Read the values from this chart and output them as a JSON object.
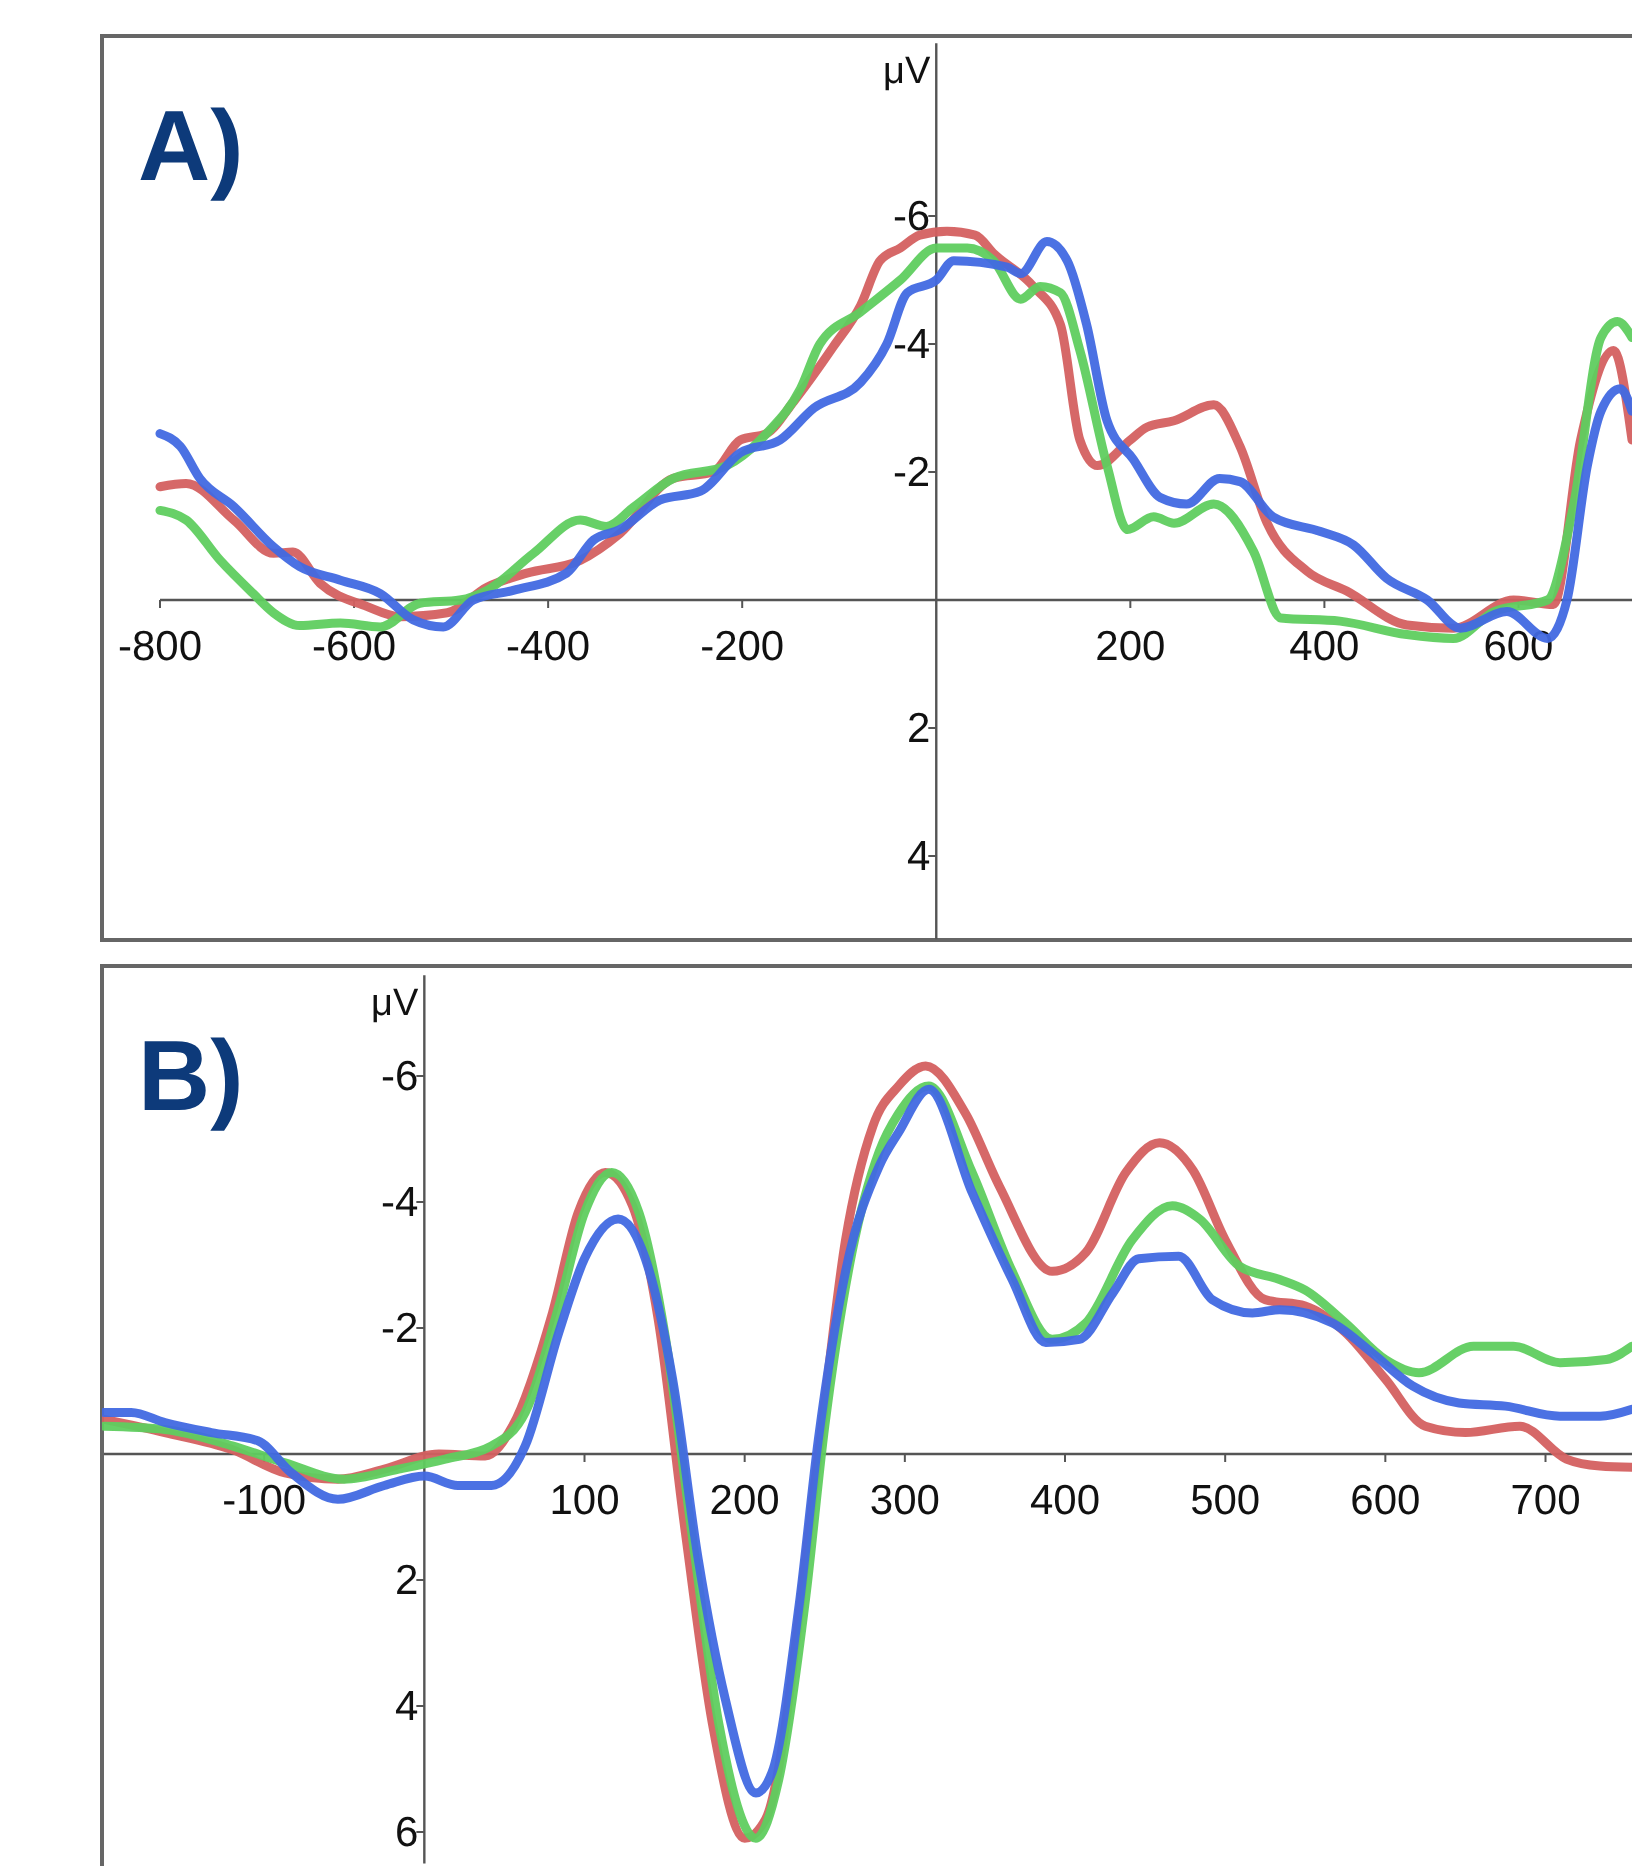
{
  "chart_data": [
    {
      "type": "line",
      "title": "A)",
      "ylabel": "μV",
      "xlim": [
        -800,
        717
      ],
      "ylim": [
        5.3,
        -8.7
      ],
      "xticks": [
        -800,
        -600,
        -400,
        -200,
        200,
        400,
        600
      ],
      "yticks": [
        -6,
        -4,
        -2,
        2,
        4
      ],
      "series": [
        {
          "color": "#d46060",
          "x": [
            -800,
            -773,
            -724,
            -683,
            -663,
            -635,
            -587,
            -553,
            -504,
            -463,
            -422,
            -367,
            -326,
            -271,
            -230,
            -202,
            -175,
            -147,
            -106,
            -78,
            -58,
            -37,
            -17,
            11,
            40,
            60,
            100,
            128,
            148,
            166,
            200,
            217,
            245,
            286,
            313,
            341,
            382,
            423,
            485,
            533,
            595,
            636,
            664,
            698,
            717
          ],
          "values": [
            -1.77,
            -1.82,
            -1.25,
            -0.73,
            -0.75,
            -0.26,
            0.1,
            0.26,
            0.2,
            -0.2,
            -0.42,
            -0.62,
            -1.04,
            -1.9,
            -2.0,
            -2.5,
            -2.6,
            -3.1,
            -3.96,
            -4.6,
            -5.3,
            -5.5,
            -5.7,
            -5.76,
            -5.7,
            -5.4,
            -4.9,
            -4.3,
            -2.5,
            -2.1,
            -2.5,
            -2.7,
            -2.8,
            -3.05,
            -2.4,
            -1.2,
            -0.45,
            -0.14,
            0.39,
            0.44,
            0,
            0.07,
            -2.5,
            -3.9,
            -2.5
          ]
        },
        {
          "color": "#5fcd5f",
          "x": [
            -800,
            -773,
            -738,
            -704,
            -683,
            -656,
            -614,
            -573,
            -532,
            -491,
            -463,
            -415,
            -367,
            -340,
            -312,
            -271,
            -216,
            -175,
            -140,
            -120,
            -78,
            -37,
            0,
            32,
            59,
            87,
            107,
            128,
            148,
            176,
            197,
            224,
            245,
            286,
            327,
            355,
            416,
            485,
            533,
            575,
            630,
            657,
            685,
            702,
            717
          ],
          "values": [
            -1.4,
            -1.25,
            -0.62,
            -0.1,
            0.2,
            0.4,
            0.36,
            0.42,
            0.05,
            0,
            -0.15,
            -0.73,
            -1.25,
            -1.15,
            -1.45,
            -1.9,
            -2.1,
            -2.6,
            -3.3,
            -4.0,
            -4.5,
            -5.0,
            -5.5,
            -5.5,
            -5.3,
            -4.7,
            -4.9,
            -4.8,
            -3.9,
            -2.1,
            -1.1,
            -1.3,
            -1.2,
            -1.5,
            -0.76,
            0.28,
            0.33,
            0.54,
            0.6,
            0.18,
            0,
            -1.5,
            -4.1,
            -4.35,
            -4.1
          ]
        },
        {
          "color": "#4169e1",
          "x": [
            -800,
            -779,
            -759,
            -724,
            -683,
            -656,
            -614,
            -573,
            -539,
            -508,
            -477,
            -436,
            -381,
            -353,
            -326,
            -285,
            -243,
            -202,
            -161,
            -126,
            -78,
            -51,
            -30,
            0,
            18,
            73,
            87,
            114,
            135,
            155,
            176,
            203,
            231,
            258,
            292,
            313,
            347,
            396,
            430,
            464,
            506,
            540,
            588,
            630,
            650,
            671,
            685,
            705,
            717
          ],
          "values": [
            -2.6,
            -2.4,
            -1.9,
            -1.46,
            -0.83,
            -0.52,
            -0.31,
            -0.1,
            0.31,
            0.42,
            0,
            -0.15,
            -0.42,
            -0.94,
            -1.1,
            -1.56,
            -1.7,
            -2.3,
            -2.5,
            -3.0,
            -3.4,
            -4.0,
            -4.8,
            -5.0,
            -5.3,
            -5.2,
            -5.1,
            -5.6,
            -5.3,
            -4.3,
            -2.8,
            -2.2,
            -1.6,
            -1.5,
            -1.9,
            -1.85,
            -1.3,
            -1.07,
            -0.86,
            -0.34,
            0,
            0.44,
            0.18,
            0.6,
            0,
            -2.1,
            -2.95,
            -3.3,
            -2.95
          ]
        }
      ]
    },
    {
      "type": "line",
      "title": "B)",
      "ylabel": "μV",
      "xlim": [
        -200,
        754
      ],
      "ylim": [
        6.5,
        -7.6
      ],
      "xticks": [
        -100,
        100,
        200,
        300,
        400,
        500,
        600,
        700
      ],
      "yticks": [
        -6,
        -4,
        -2,
        2,
        4,
        6
      ],
      "series": [
        {
          "color": "#d46060",
          "x": [
            -200,
            -162,
            -120,
            -87,
            -54,
            -25,
            9,
            38,
            55,
            80,
            96,
            113,
            130,
            146,
            163,
            180,
            200,
            213,
            246,
            263,
            280,
            296,
            313,
            338,
            359,
            392,
            413,
            438,
            459,
            480,
            500,
            525,
            550,
            575,
            600,
            625,
            650,
            684,
            713,
            734,
            754
          ],
          "values": [
            -0.55,
            -0.34,
            -0.07,
            0.3,
            0.4,
            0.24,
            0,
            0.03,
            -0.44,
            -2.24,
            -3.83,
            -4.47,
            -3.94,
            -2.14,
            1.25,
            4.3,
            6.1,
            5.8,
            0,
            -3.4,
            -5.2,
            -5.84,
            -6.16,
            -5.4,
            -4.25,
            -2.9,
            -3.2,
            -4.47,
            -4.94,
            -4.5,
            -3.4,
            -2.45,
            -2.35,
            -1.93,
            -1.19,
            -0.44,
            -0.34,
            -0.44,
            0.08,
            0.19,
            0.21
          ]
        },
        {
          "color": "#5fcd5f",
          "x": [
            -200,
            -162,
            -120,
            -87,
            -50,
            -16,
            13,
            42,
            63,
            84,
            100,
            117,
            134,
            150,
            167,
            184,
            207,
            221,
            238,
            250,
            267,
            284,
            296,
            315,
            342,
            367,
            392,
            413,
            442,
            467,
            484,
            509,
            534,
            550,
            575,
            600,
            621,
            655,
            680,
            709,
            738,
            754
          ],
          "values": [
            -0.44,
            -0.39,
            -0.13,
            0.14,
            0.4,
            0.24,
            0.08,
            -0.13,
            -0.66,
            -2.35,
            -3.83,
            -4.47,
            -3.83,
            -1.93,
            1.25,
            4.3,
            6.1,
            5.2,
            2.3,
            -0.44,
            -3.2,
            -4.8,
            -5.4,
            -5.84,
            -4.47,
            -2.9,
            -1.82,
            -2.08,
            -3.4,
            -3.94,
            -3.73,
            -2.98,
            -2.77,
            -2.6,
            -2.08,
            -1.5,
            -1.29,
            -1.71,
            -1.71,
            -1.45,
            -1.5,
            -1.71
          ]
        },
        {
          "color": "#4169e1",
          "x": [
            -200,
            -183,
            -162,
            -133,
            -104,
            -83,
            -54,
            -25,
            0,
            21,
            42,
            63,
            84,
            100,
            121,
            138,
            155,
            171,
            188,
            207,
            217,
            234,
            246,
            263,
            284,
            296,
            315,
            342,
            367,
            388,
            409,
            430,
            446,
            471,
            492,
            517,
            534,
            567,
            592,
            617,
            646,
            675,
            709,
            734,
            754
          ],
          "values": [
            -0.66,
            -0.66,
            -0.5,
            -0.34,
            -0.21,
            0.3,
            0.72,
            0.5,
            0.35,
            0.5,
            0.5,
            -0.13,
            -1.93,
            -3.1,
            -3.73,
            -3.1,
            -1.19,
            1.67,
            3.9,
            5.38,
            5.06,
            2.4,
            -0.23,
            -2.9,
            -4.57,
            -5.1,
            -5.79,
            -4.15,
            -2.77,
            -1.77,
            -1.82,
            -2.56,
            -3.1,
            -3.14,
            -2.45,
            -2.24,
            -2.29,
            -2.08,
            -1.6,
            -1.08,
            -0.81,
            -0.76,
            -0.6,
            -0.6,
            -0.71
          ]
        }
      ]
    }
  ]
}
